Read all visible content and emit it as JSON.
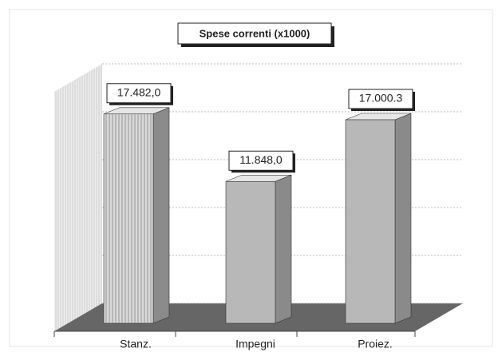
{
  "chart_data": {
    "type": "bar",
    "title": "Spese correnti (x1000)",
    "categories": [
      "Stanz.",
      "Impegni",
      "Proiez."
    ],
    "values": [
      17482.0,
      11848.0,
      17000.3
    ],
    "value_labels": [
      "17.482,0",
      "11.848,0",
      "17.000.3"
    ],
    "color": "#b8b8b8",
    "ylim": [
      0,
      20000
    ],
    "yticks": [
      0,
      4000,
      8000,
      12000,
      16000,
      20000
    ],
    "grid": true
  }
}
